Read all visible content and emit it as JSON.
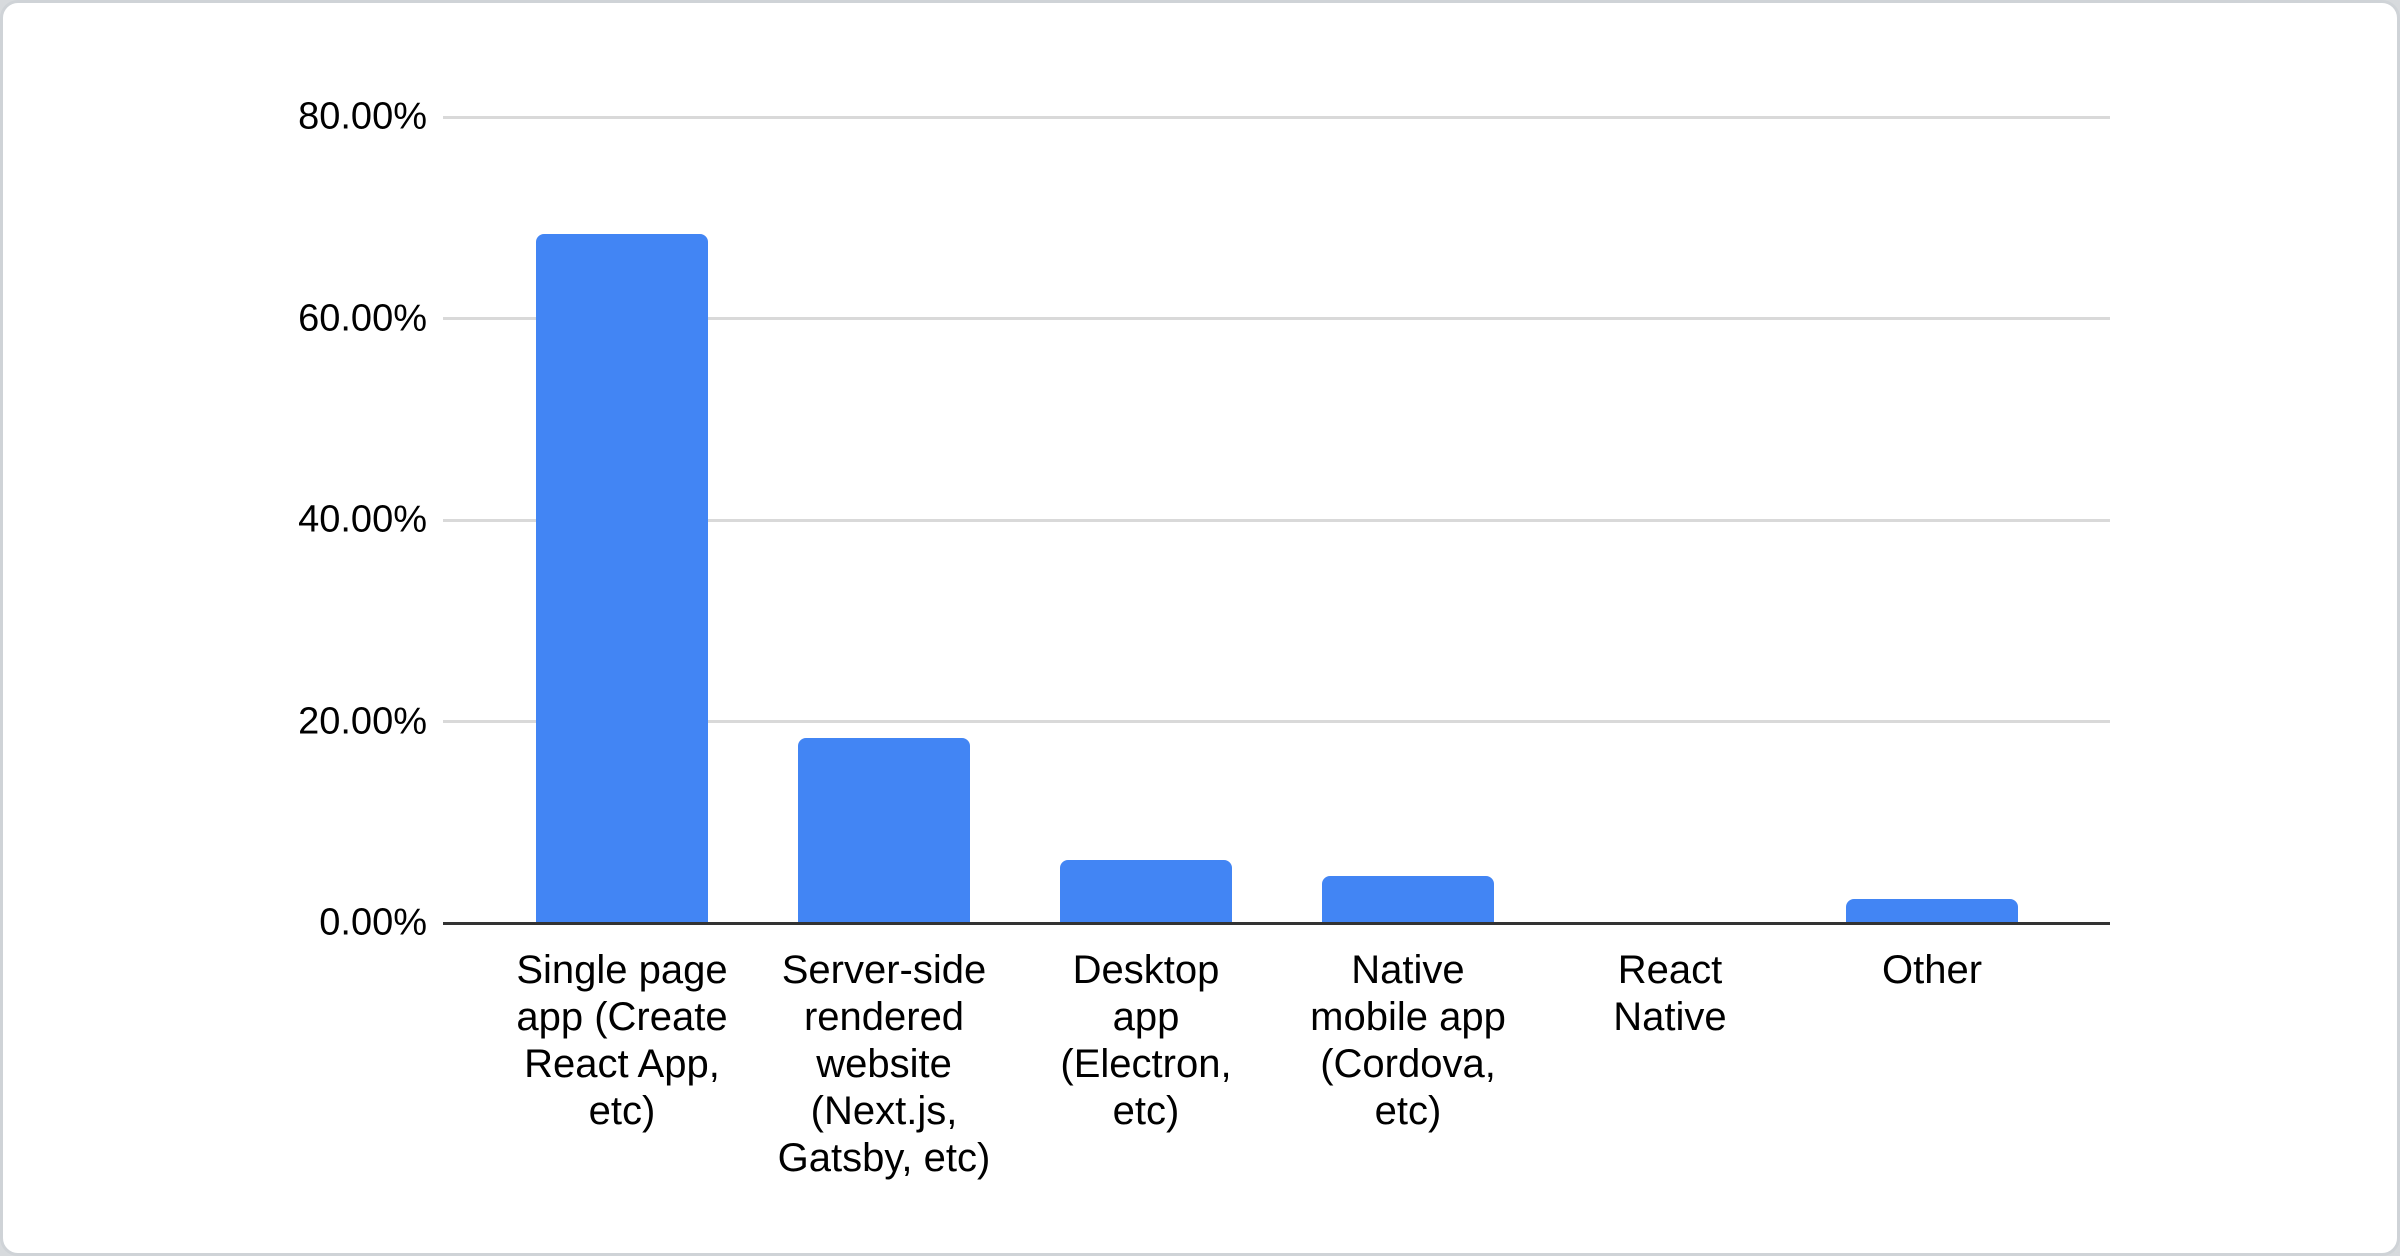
{
  "chart_data": {
    "type": "bar",
    "title": "",
    "xlabel": "",
    "ylabel": "",
    "categories": [
      "Single page app (Create React App, etc)",
      "Server-side rendered website (Next.js, Gatsby, etc)",
      "Desktop app (Electron, etc)",
      "Native mobile app (Cordova, etc)",
      "React Native",
      "Other"
    ],
    "category_lines": [
      [
        "Single page",
        "app (Create",
        "React App,",
        "etc)"
      ],
      [
        "Server-side",
        "rendered",
        "website",
        "(Next.js,",
        "Gatsby, etc)"
      ],
      [
        "Desktop",
        "app",
        "(Electron,",
        "etc)"
      ],
      [
        "Native",
        "mobile app",
        "(Cordova,",
        "etc)"
      ],
      [
        "React",
        "Native"
      ],
      [
        "Other"
      ]
    ],
    "values": [
      68.4,
      18.4,
      6.3,
      4.7,
      0,
      2.4
    ],
    "value_unit": "%",
    "ylim": [
      0,
      80
    ],
    "yticks": [
      {
        "value": 0,
        "label": "0.00%"
      },
      {
        "value": 20,
        "label": "20.00%"
      },
      {
        "value": 40,
        "label": "40.00%"
      },
      {
        "value": 60,
        "label": "60.00%"
      },
      {
        "value": 80,
        "label": "80.00%"
      }
    ],
    "grid": true,
    "legend": "none",
    "colors": {
      "bar": "#4285f4",
      "gridline": "#d9d9d9",
      "axis": "#333333",
      "text": "#000000",
      "card_background": "#ffffff",
      "card_border": "#cfd3d7"
    }
  }
}
